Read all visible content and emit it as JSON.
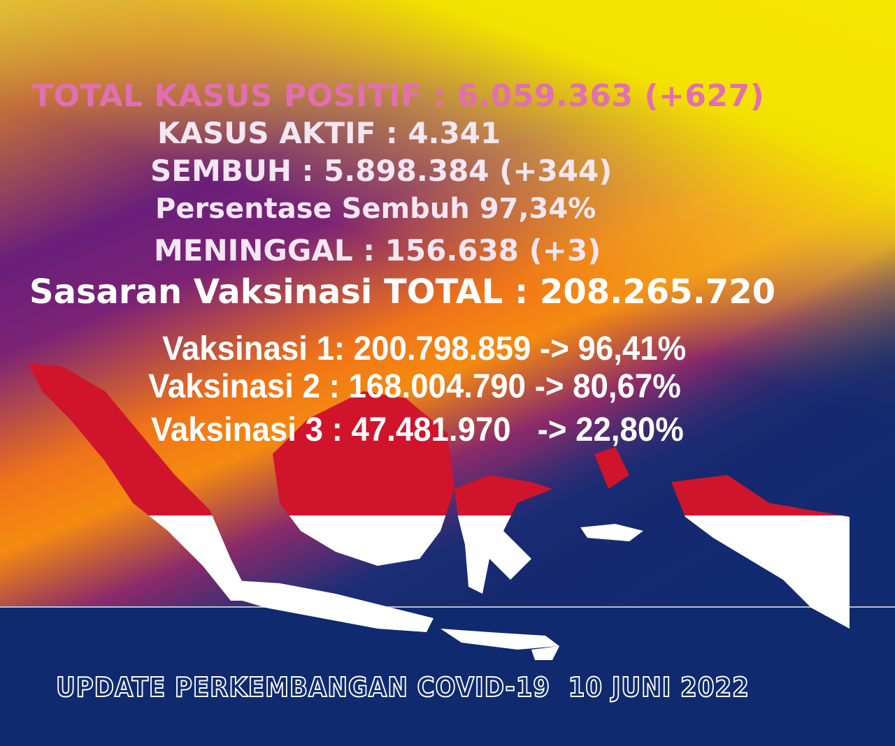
{
  "stats": {
    "total_positif": "TOTAL KASUS POSITIF : 6.059.363 (+627)",
    "kasus_aktif": "KASUS AKTIF : 4.341",
    "sembuh": "SEMBUH : 5.898.384 (+344)",
    "persentase_sembuh": "Persentase Sembuh 97,34%",
    "meninggal": "MENINGGAL : 156.638 (+3)",
    "sasaran_vaksinasi": "Sasaran Vaksinasi TOTAL : 208.265.720"
  },
  "vaksinasi": [
    "Vaksinasi 1: 200.798.859 -> 96,41%",
    "Vaksinasi 2 : 168.004.790 -> 80,67%",
    "Vaksinasi 3 : 47.481.970   -> 22,80%"
  ],
  "footer": "UPDATE PERKEMBANGAN COVID-19  10 JUNI 2022",
  "colors": {
    "flag_red": "#d0142c",
    "flag_white": "#ffffff",
    "navy": "#0f2a6e",
    "yellow": "#f7e600",
    "orange": "#f58a10",
    "purple": "#6a1f7a",
    "pink_text": "#e26fb0"
  },
  "illustration": "indonesia-map-flag"
}
